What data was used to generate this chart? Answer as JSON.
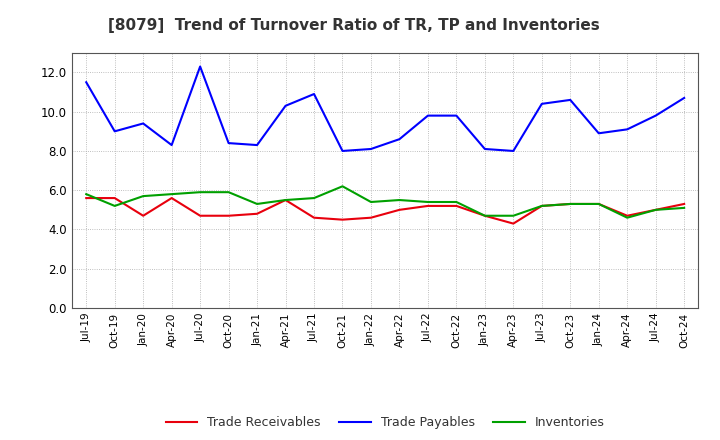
{
  "title": "[8079]  Trend of Turnover Ratio of TR, TP and Inventories",
  "labels": [
    "Jul-19",
    "Oct-19",
    "Jan-20",
    "Apr-20",
    "Jul-20",
    "Oct-20",
    "Jan-21",
    "Apr-21",
    "Jul-21",
    "Oct-21",
    "Jan-22",
    "Apr-22",
    "Jul-22",
    "Oct-22",
    "Jan-23",
    "Apr-23",
    "Jul-23",
    "Oct-23",
    "Jan-24",
    "Apr-24",
    "Jul-24",
    "Oct-24"
  ],
  "trade_receivables": [
    5.6,
    5.6,
    4.7,
    5.6,
    4.7,
    4.7,
    4.8,
    5.5,
    4.6,
    4.5,
    4.6,
    5.0,
    5.2,
    5.2,
    4.7,
    4.3,
    5.2,
    5.3,
    5.3,
    4.7,
    5.0,
    5.3
  ],
  "trade_payables": [
    11.5,
    9.0,
    9.4,
    8.3,
    12.3,
    8.4,
    8.3,
    10.3,
    10.9,
    8.0,
    8.1,
    8.6,
    9.8,
    9.8,
    8.1,
    8.0,
    10.4,
    10.6,
    8.9,
    9.1,
    9.8,
    10.7
  ],
  "inventories": [
    5.8,
    5.2,
    5.7,
    5.8,
    5.9,
    5.9,
    5.3,
    5.5,
    5.6,
    6.2,
    5.4,
    5.5,
    5.4,
    5.4,
    4.7,
    4.7,
    5.2,
    5.3,
    5.3,
    4.6,
    5.0,
    5.1
  ],
  "tr_color": "#e8000d",
  "tp_color": "#0000ff",
  "inv_color": "#00a000",
  "ylim": [
    0,
    13
  ],
  "yticks": [
    0.0,
    2.0,
    4.0,
    6.0,
    8.0,
    10.0,
    12.0
  ],
  "legend_labels": [
    "Trade Receivables",
    "Trade Payables",
    "Inventories"
  ],
  "background_color": "#ffffff",
  "grid_color": "#aaaaaa"
}
